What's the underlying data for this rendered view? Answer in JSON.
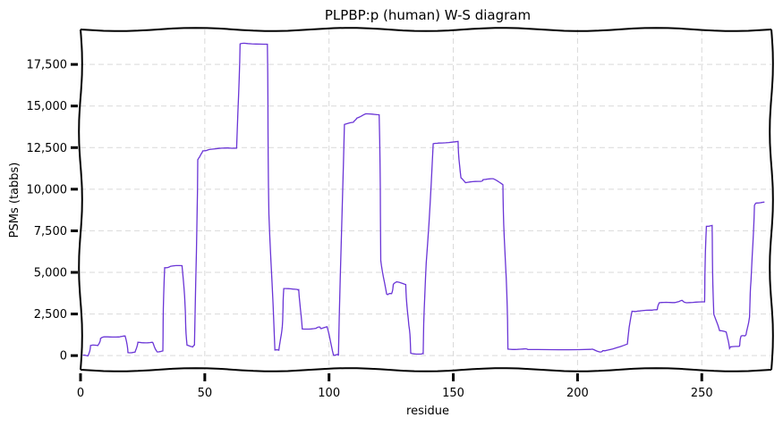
{
  "chart_data": {
    "type": "line",
    "title": "PLPBP:p (human) W-S diagram",
    "xlabel": "residue",
    "ylabel": "PSMs (tabbs)",
    "xlim": [
      0,
      278
    ],
    "ylim": [
      -850,
      19600
    ],
    "xticks": [
      0,
      50,
      100,
      150,
      200,
      250
    ],
    "xtick_labels": [
      "0",
      "50",
      "100",
      "150",
      "200",
      "250"
    ],
    "yticks": [
      0,
      2500,
      5000,
      7500,
      10000,
      12500,
      15000,
      17500
    ],
    "ytick_labels": [
      "0",
      "2,500",
      "5,000",
      "7,500",
      "10,000",
      "12,500",
      "15,000",
      "17,500"
    ],
    "grid": true,
    "line_color": "#6a35d6",
    "series": [
      {
        "x": [
          1,
          3,
          4,
          7,
          8,
          10,
          15,
          18,
          19,
          22,
          23,
          28,
          29,
          31,
          33,
          34,
          36,
          41,
          42,
          43,
          45,
          46,
          47,
          48,
          49,
          52,
          59,
          63,
          64,
          66,
          75,
          76,
          78,
          80,
          81,
          82,
          87,
          88,
          89,
          95,
          96,
          97,
          99,
          102,
          103,
          104,
          106,
          110,
          111,
          115,
          120,
          121,
          123,
          124,
          125,
          126,
          127,
          131,
          132,
          133,
          137,
          138,
          139,
          142,
          144,
          152,
          153,
          155,
          161,
          162,
          166,
          170,
          171,
          172,
          178,
          180,
          205,
          206,
          209,
          210,
          211,
          220,
          222,
          224,
          230,
          232,
          233,
          238,
          241,
          242,
          244,
          251,
          252,
          254,
          255,
          257,
          260,
          261,
          262,
          265,
          266,
          267,
          268,
          269,
          270,
          271,
          272,
          275
        ],
        "y": [
          0,
          0,
          600,
          600,
          1050,
          1100,
          1150,
          1150,
          200,
          200,
          800,
          800,
          750,
          250,
          250,
          5300,
          5350,
          5400,
          2700,
          600,
          550,
          600,
          11800,
          11900,
          12300,
          12400,
          12450,
          12500,
          18700,
          18800,
          18700,
          8500,
          350,
          300,
          1800,
          4000,
          4000,
          3950,
          1600,
          1650,
          1700,
          1650,
          1700,
          50,
          50,
          0,
          13900,
          14000,
          14300,
          14500,
          14500,
          5700,
          3700,
          3700,
          3700,
          4300,
          4400,
          4300,
          1800,
          150,
          100,
          100,
          5600,
          12700,
          12800,
          12850,
          10700,
          10400,
          10450,
          10600,
          10600,
          10300,
          5500,
          400,
          400,
          350,
          400,
          350,
          250,
          250,
          300,
          700,
          2650,
          2700,
          2700,
          2800,
          3150,
          3200,
          3250,
          3300,
          3200,
          3200,
          7800,
          7800,
          2500,
          1500,
          1400,
          450,
          500,
          600,
          1150,
          1200,
          1250,
          2300,
          4500,
          9000,
          9200,
          9200
        ]
      }
    ]
  }
}
